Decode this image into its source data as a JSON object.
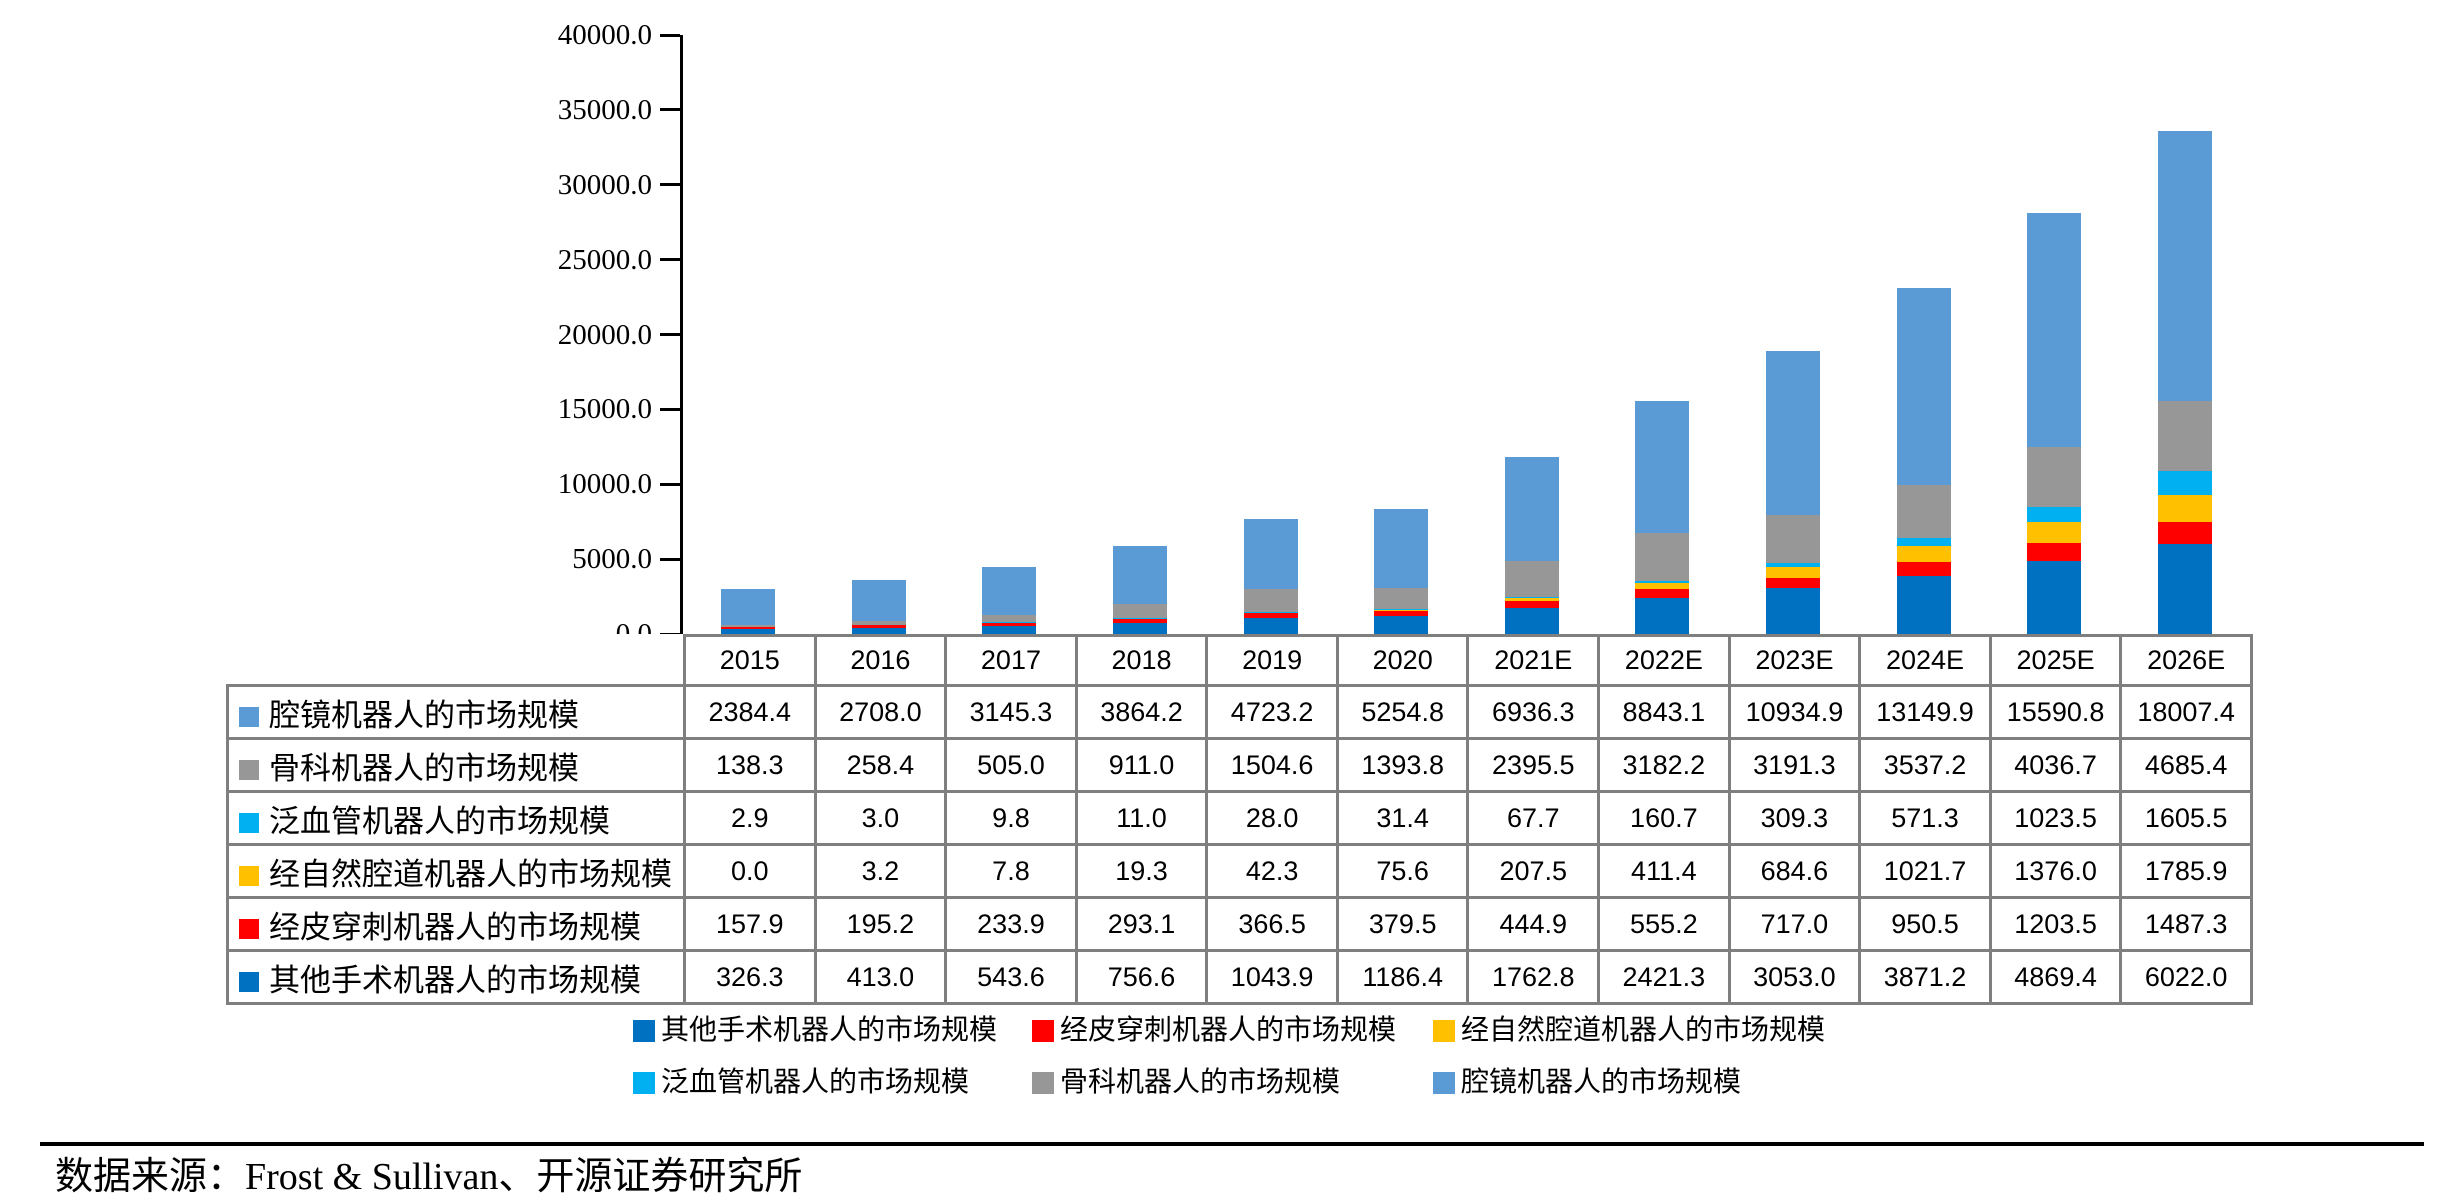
{
  "chart_data": {
    "type": "bar",
    "stacked": true,
    "title": "",
    "xlabel": "",
    "ylabel": "",
    "categories": [
      "2015",
      "2016",
      "2017",
      "2018",
      "2019",
      "2020",
      "2021E",
      "2022E",
      "2023E",
      "2024E",
      "2025E",
      "2026E"
    ],
    "series": [
      {
        "name": "其他手术机器人的市场规模",
        "color": "#0070C0",
        "values": [
          326.3,
          413.0,
          543.6,
          756.6,
          1043.9,
          1186.4,
          1762.8,
          2421.3,
          3053.0,
          3871.2,
          4869.4,
          6022.0
        ]
      },
      {
        "name": "经皮穿刺机器人的市场规模",
        "color": "#FF0000",
        "values": [
          157.9,
          195.2,
          233.9,
          293.1,
          366.5,
          379.5,
          444.9,
          555.2,
          717.0,
          950.5,
          1203.5,
          1487.3
        ]
      },
      {
        "name": "经自然腔道机器人的市场规模",
        "color": "#FFC000",
        "values": [
          0.0,
          3.2,
          7.8,
          19.3,
          42.3,
          75.6,
          207.5,
          411.4,
          684.6,
          1021.7,
          1376.0,
          1785.9
        ]
      },
      {
        "name": "泛血管机器人的市场规模",
        "color": "#00B0F0",
        "values": [
          2.9,
          3.0,
          9.8,
          11.0,
          28.0,
          31.4,
          67.7,
          160.7,
          309.3,
          571.3,
          1023.5,
          1605.5
        ]
      },
      {
        "name": "骨科机器人的市场规模",
        "color": "#979797",
        "values": [
          138.3,
          258.4,
          505.0,
          911.0,
          1504.6,
          1393.8,
          2395.5,
          3182.2,
          3191.3,
          3537.2,
          4036.7,
          4685.4
        ]
      },
      {
        "name": "腔镜机器人的市场规模",
        "color": "#5B9BD5",
        "values": [
          2384.4,
          2708.0,
          3145.3,
          3864.2,
          4723.2,
          5254.8,
          6936.3,
          8843.1,
          10934.9,
          13149.9,
          15590.8,
          18007.4
        ]
      }
    ],
    "ylim": [
      0,
      40000
    ],
    "ytick_step": 5000,
    "ytick_labels": [
      "0.0",
      "5000.0",
      "10000.0",
      "15000.0",
      "20000.0",
      "25000.0",
      "30000.0",
      "35000.0",
      "40000.0"
    ],
    "grid": false,
    "legend_position": "bottom",
    "table_row_order_top_to_bottom": [
      "腔镜机器人的市场规模",
      "骨科机器人的市场规模",
      "泛血管机器人的市场规模",
      "经自然腔道机器人的市场规模",
      "经皮穿刺机器人的市场规模",
      "其他手术机器人的市场规模"
    ]
  },
  "source": {
    "text": "数据来源：Frost & Sullivan、开源证券研究所"
  }
}
